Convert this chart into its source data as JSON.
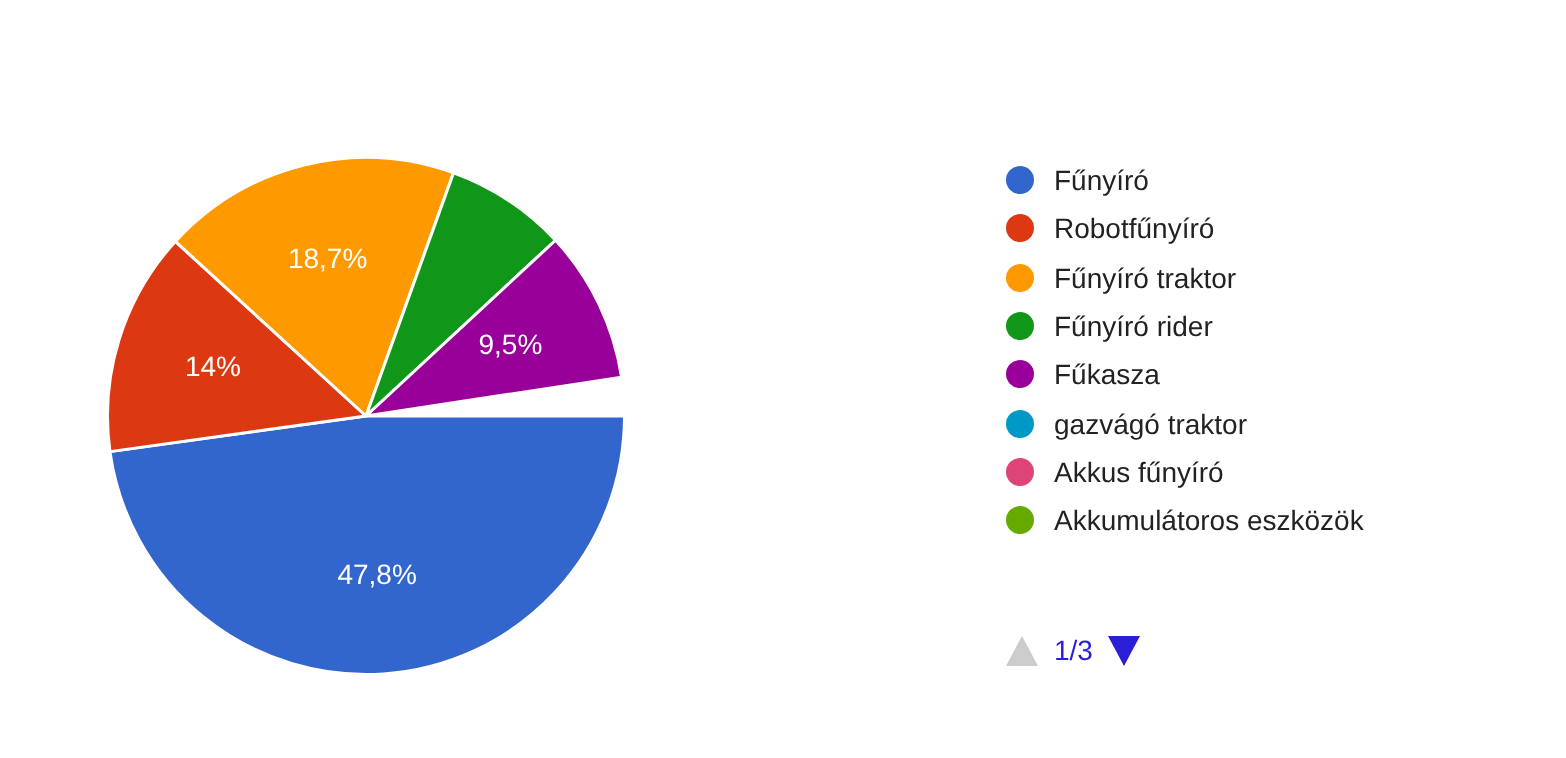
{
  "chart_data": {
    "type": "pie",
    "categories": [
      "Fűnyíró",
      "Robotfűnyíró",
      "Fűnyíró traktor",
      "Fűnyíró rider",
      "Fűkasza",
      "gazvágó traktor",
      "Akkus fűnyíró",
      "Akkumulátoros eszközök"
    ],
    "values": [
      47.8,
      14,
      18.7,
      7.6,
      9.5,
      null,
      null,
      null
    ],
    "value_labels": [
      "47,8%",
      "14%",
      "18,7%",
      null,
      "9,5%",
      null,
      null,
      null
    ],
    "colors": [
      "#3366cc",
      "#dc3912",
      "#ff9900",
      "#109618",
      "#990099",
      "#0099c6",
      "#dd4477",
      "#66aa00"
    ],
    "legend": "right",
    "annotations": [
      "1/3"
    ]
  }
}
